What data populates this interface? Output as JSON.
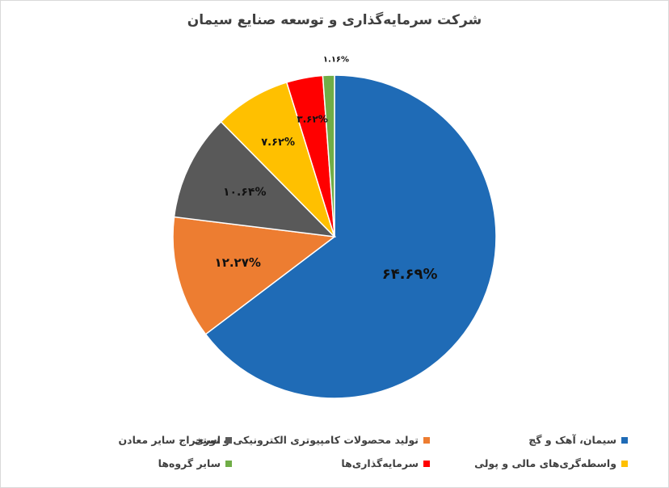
{
  "chart_data": {
    "type": "pie",
    "title": "شرکت سرمایه‌گذاری و توسعه صنایع سیمان",
    "slices": [
      {
        "label": "سیمان، آهک و گچ",
        "value": 64.69,
        "display": "۶۴.۶۹%",
        "color": "#1f6bb6"
      },
      {
        "label": "تولید محصولات کامپیوتری الکترونیکی و نوری",
        "value": 12.27,
        "display": "۱۲.۲۷%",
        "color": "#ed7d31"
      },
      {
        "label": "استخراج سایر معادن",
        "value": 10.64,
        "display": "۱۰.۶۴%",
        "color": "#595959"
      },
      {
        "label": "واسطه‌گری‌های مالی و پولی",
        "value": 7.62,
        "display": "۷.۶۲%",
        "color": "#ffc000"
      },
      {
        "label": "سرمایه‌گذاری‌ها",
        "value": 3.62,
        "display": "۳.۶۲%",
        "color": "#ff0000"
      },
      {
        "label": "سایر گروه‌ها",
        "value": 1.16,
        "display": "۱.۱۶%",
        "color": "#70ad47"
      }
    ],
    "legend_position": "bottom"
  }
}
